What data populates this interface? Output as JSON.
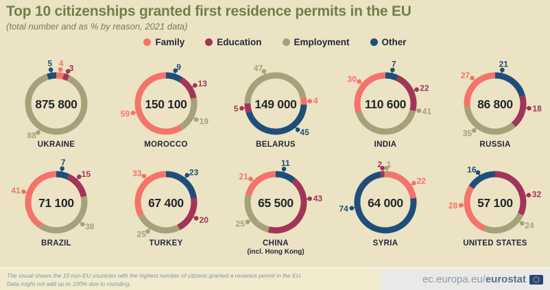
{
  "header": {
    "title": "Top 10 citizenships granted first residence permits in the EU",
    "subtitle": "(total number and as % by reason, 2021 data)"
  },
  "colors": {
    "family": "#F4736B",
    "education": "#A23557",
    "employment": "#A5A17B",
    "other": "#1F4E7A",
    "background": "#EBE3C3",
    "title_green": "#6F7F4D",
    "text_dark": "#23283C",
    "center_number": "#26262C",
    "footer_note": "#7E93AB",
    "footer_left_bg": "#F1EBCD",
    "footer_right_bg": "#E9E9E7",
    "eu_flag_blue": "#24418B",
    "eu_flag_stars": "#F2C500"
  },
  "legend": [
    {
      "label": "Family",
      "reason": "family"
    },
    {
      "label": "Education",
      "reason": "education"
    },
    {
      "label": "Employment",
      "reason": "employment"
    },
    {
      "label": "Other",
      "reason": "other"
    }
  ],
  "chart_data": {
    "type": "pie",
    "variant": "donut-small-multiples",
    "unit": "% of first residence permits by reason",
    "title": "Top 10 citizenships granted first residence permits in the EU",
    "legend": [
      "Family",
      "Education",
      "Employment",
      "Other"
    ],
    "charts": [
      {
        "country": "UKRAINE",
        "total_label": "875 800",
        "start_angle": 342,
        "segments": [
          {
            "reason": "other",
            "value": 5,
            "label_angle": 351
          },
          {
            "reason": "family",
            "value": 4,
            "label_angle": 7
          },
          {
            "reason": "education",
            "value": 3,
            "label_angle": 20
          },
          {
            "reason": "employment",
            "value": 88,
            "label_angle": 212
          }
        ]
      },
      {
        "country": "MOROCCO",
        "total_label": "150 100",
        "start_angle": 0,
        "segments": [
          {
            "reason": "other",
            "value": 9,
            "label_angle": 16
          },
          {
            "reason": "education",
            "value": 13,
            "label_angle": 58
          },
          {
            "reason": "employment",
            "value": 19,
            "label_angle": 118
          },
          {
            "reason": "family",
            "value": 59,
            "label_angle": 254
          }
        ]
      },
      {
        "country": "BELARUS",
        "total_label": "149 000",
        "start_angle": 78,
        "segments": [
          {
            "reason": "family",
            "value": 4,
            "label_angle": 86
          },
          {
            "reason": "other",
            "value": 45,
            "label_angle": 140
          },
          {
            "reason": "education",
            "value": 5,
            "label_angle": 262
          },
          {
            "reason": "employment",
            "value": 47,
            "label_angle": 340
          }
        ]
      },
      {
        "country": "INDIA",
        "total_label": "110 600",
        "start_angle": 0,
        "segments": [
          {
            "reason": "other",
            "value": 7,
            "label_angle": 12
          },
          {
            "reason": "education",
            "value": 22,
            "label_angle": 66
          },
          {
            "reason": "employment",
            "value": 41,
            "label_angle": 102
          },
          {
            "reason": "family",
            "value": 30,
            "label_angle": 310
          }
        ]
      },
      {
        "country": "RUSSIA",
        "total_label": "86 800",
        "start_angle": 0,
        "segments": [
          {
            "reason": "other",
            "value": 21,
            "label_angle": 12
          },
          {
            "reason": "education",
            "value": 18,
            "label_angle": 98
          },
          {
            "reason": "employment",
            "value": 35,
            "label_angle": 218
          },
          {
            "reason": "family",
            "value": 27,
            "label_angle": 318
          }
        ]
      },
      {
        "country": "BRAZIL",
        "total_label": "71 100",
        "start_angle": 0,
        "segments": [
          {
            "reason": "other",
            "value": 7,
            "label_angle": 10
          },
          {
            "reason": "education",
            "value": 15,
            "label_angle": 42
          },
          {
            "reason": "employment",
            "value": 38,
            "label_angle": 130
          },
          {
            "reason": "family",
            "value": 41,
            "label_angle": 288
          }
        ]
      },
      {
        "country": "TURKEY",
        "total_label": "67 400",
        "start_angle": 0,
        "segments": [
          {
            "reason": "other",
            "value": 23,
            "label_angle": 38
          },
          {
            "reason": "education",
            "value": 20,
            "label_angle": 118
          },
          {
            "reason": "employment",
            "value": 25,
            "label_angle": 212
          },
          {
            "reason": "family",
            "value": 33,
            "label_angle": 320
          }
        ]
      },
      {
        "country": "CHINA",
        "sublabel": "(incl. Hong Kong)",
        "total_label": "65 500",
        "start_angle": 0,
        "segments": [
          {
            "reason": "other",
            "value": 11,
            "label_angle": 14
          },
          {
            "reason": "education",
            "value": 43,
            "label_angle": 84
          },
          {
            "reason": "employment",
            "value": 25,
            "label_angle": 235
          },
          {
            "reason": "family",
            "value": 21,
            "label_angle": 313
          }
        ]
      },
      {
        "country": "SYRIA",
        "total_label": "64 000",
        "start_angle": 351,
        "segments": [
          {
            "reason": "education",
            "value": 2,
            "label_angle": 355,
            "anchor": "end"
          },
          {
            "reason": "employment",
            "value": 1,
            "label_angle": 2,
            "anchor": "start"
          },
          {
            "reason": "family",
            "value": 22,
            "label_angle": 56
          },
          {
            "reason": "other",
            "value": 74,
            "label_angle": 260
          }
        ]
      },
      {
        "country": "UNITED STATES",
        "total_label": "57 100",
        "start_angle": 0,
        "segments": [
          {
            "reason": "education",
            "value": 32,
            "label_angle": 78
          },
          {
            "reason": "employment",
            "value": 24,
            "label_angle": 128
          },
          {
            "reason": "family",
            "value": 28,
            "label_angle": 265
          },
          {
            "reason": "other",
            "value": 16,
            "label_angle": 330
          }
        ]
      }
    ]
  },
  "footer": {
    "note_line1": "The visual shows the 10 non-EU countries with the highest number of citizens granted a resience permit in the EU.",
    "note_line2": "Data might not add up to 100% due to rounding.",
    "url_prefix": "ec.europa.eu/",
    "url_bold": "eurostat"
  }
}
